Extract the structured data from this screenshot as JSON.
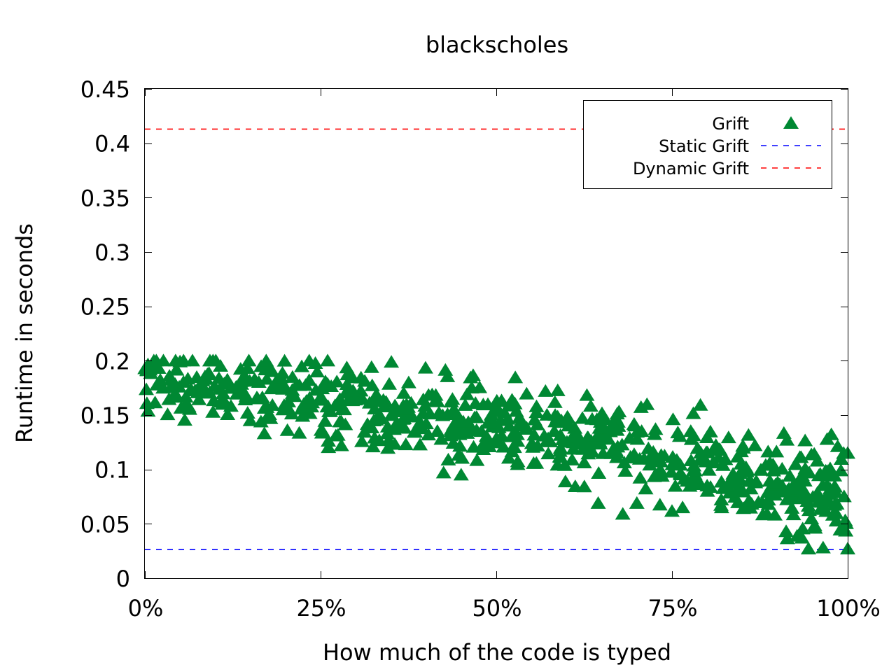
{
  "chart_data": {
    "type": "scatter",
    "title": "blackscholes",
    "xlabel": "How much of the code is typed",
    "ylabel": "Runtime in seconds",
    "xlim": [
      0,
      100
    ],
    "ylim": [
      0,
      0.45
    ],
    "x_ticks": [
      0,
      25,
      50,
      75,
      100
    ],
    "x_tick_labels": [
      "0%",
      "25%",
      "50%",
      "75%",
      "100%"
    ],
    "y_ticks": [
      0,
      0.05,
      0.1,
      0.15,
      0.2,
      0.25,
      0.3,
      0.35,
      0.4,
      0.45
    ],
    "y_tick_labels": [
      "0",
      "0.05",
      "0.1",
      "0.15",
      "0.2",
      "0.25",
      "0.3",
      "0.35",
      "0.4",
      "0.45"
    ],
    "grid": false,
    "legend_position": "top-right",
    "series": [
      {
        "name": "Grift",
        "kind": "scatter",
        "marker": "triangle",
        "color": "#008833",
        "approx_count": 700,
        "trend": {
          "x": [
            0,
            25,
            50,
            75,
            100
          ],
          "y": [
            0.185,
            0.16,
            0.14,
            0.115,
            0.075
          ]
        },
        "spread": 0.018,
        "range": {
          "x": [
            0,
            100
          ],
          "y": [
            0.027,
            0.2
          ]
        },
        "outliers": [
          {
            "x": 17,
            "y": 0.133
          },
          {
            "x": 15,
            "y": 0.145
          },
          {
            "x": 42.5,
            "y": 0.097
          },
          {
            "x": 45,
            "y": 0.095
          },
          {
            "x": 57,
            "y": 0.172
          },
          {
            "x": 64.5,
            "y": 0.069
          },
          {
            "x": 68,
            "y": 0.059
          },
          {
            "x": 70,
            "y": 0.069
          },
          {
            "x": 96.5,
            "y": 0.028
          },
          {
            "x": 100,
            "y": 0.027
          },
          {
            "x": 100,
            "y": 0.115
          },
          {
            "x": 93.5,
            "y": 0.037
          },
          {
            "x": 26,
            "y": 0.2
          },
          {
            "x": 5.5,
            "y": 0.2
          },
          {
            "x": 46.5,
            "y": 0.175
          }
        ]
      },
      {
        "name": "Static Grift",
        "kind": "hline",
        "value": 0.0265,
        "color": "#0000ff",
        "dash": "dashed"
      },
      {
        "name": "Dynamic Grift",
        "kind": "hline",
        "value": 0.413,
        "color": "#ff0000",
        "dash": "dashed"
      }
    ]
  }
}
